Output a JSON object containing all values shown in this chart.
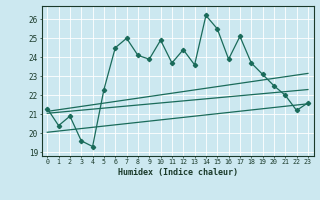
{
  "title": "",
  "xlabel": "Humidex (Indice chaleur)",
  "bg_color": "#cce8f0",
  "line_color": "#1a6b5a",
  "xlim": [
    -0.5,
    23.5
  ],
  "ylim": [
    18.8,
    26.7
  ],
  "xticks": [
    0,
    1,
    2,
    3,
    4,
    5,
    6,
    7,
    8,
    9,
    10,
    11,
    12,
    13,
    14,
    15,
    16,
    17,
    18,
    19,
    20,
    21,
    22,
    23
  ],
  "yticks": [
    19,
    20,
    21,
    22,
    23,
    24,
    25,
    26
  ],
  "main_series_x": [
    0,
    1,
    2,
    3,
    4,
    5,
    6,
    7,
    8,
    9,
    10,
    11,
    12,
    13,
    14,
    15,
    16,
    17,
    18,
    19,
    20,
    21,
    22,
    23
  ],
  "main_series_y": [
    21.3,
    20.4,
    20.9,
    19.6,
    19.3,
    22.3,
    24.5,
    25.0,
    24.1,
    23.9,
    24.9,
    23.7,
    24.4,
    23.6,
    26.2,
    25.5,
    23.9,
    25.1,
    23.7,
    23.1,
    22.5,
    22.0,
    21.2,
    21.6
  ],
  "line1_x": [
    0,
    23
  ],
  "line1_y": [
    21.05,
    22.3
  ],
  "line2_x": [
    0,
    23
  ],
  "line2_y": [
    21.15,
    23.15
  ],
  "line3_x": [
    0,
    23
  ],
  "line3_y": [
    20.05,
    21.55
  ]
}
